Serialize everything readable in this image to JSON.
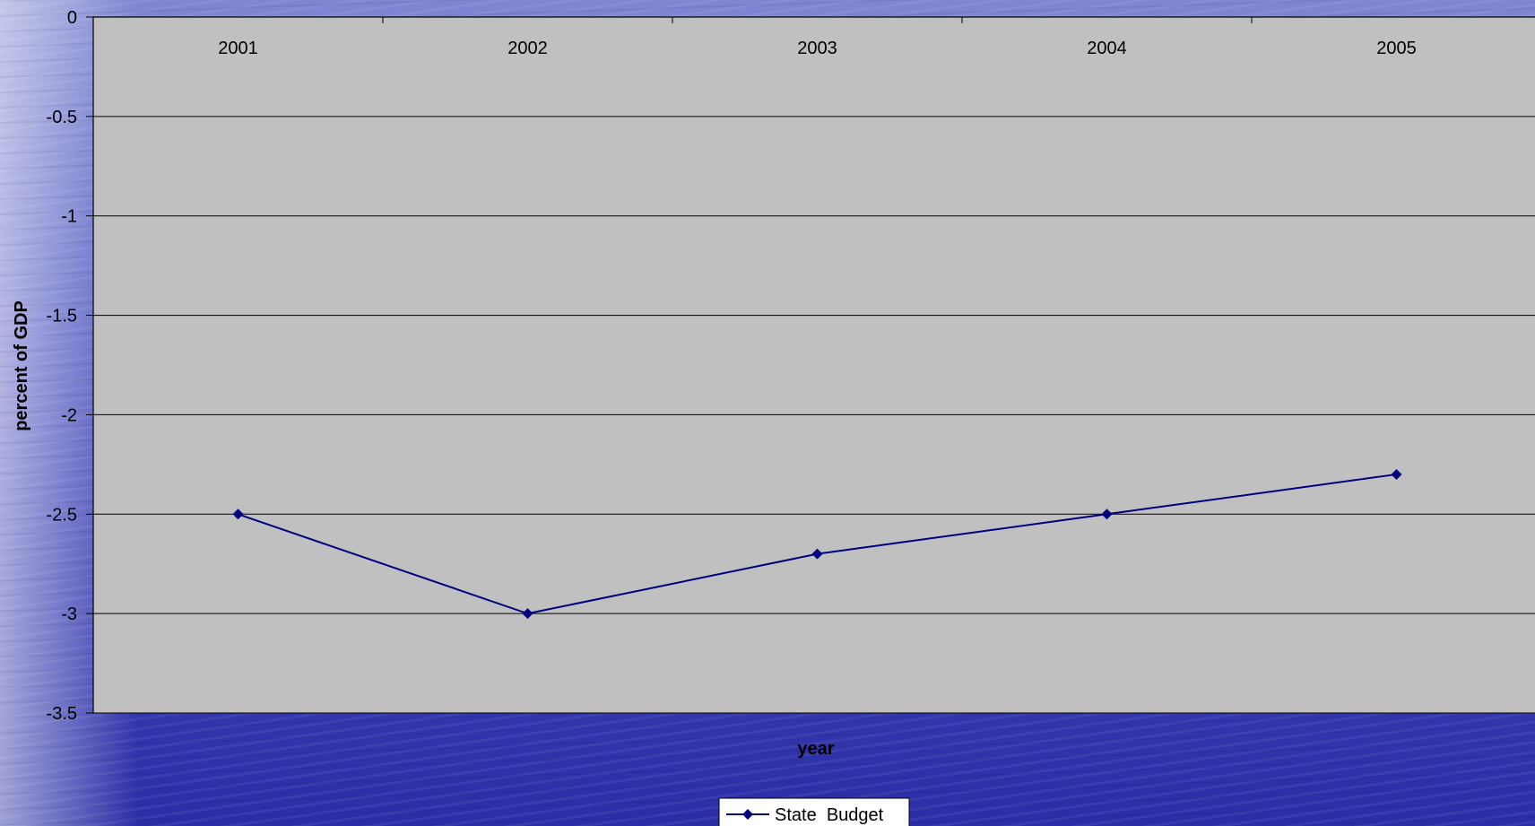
{
  "chart_data": {
    "type": "line",
    "title": "",
    "xlabel": "year",
    "ylabel": "percent of GDP",
    "categories": [
      "2001",
      "2002",
      "2003",
      "2004",
      "2005"
    ],
    "series": [
      {
        "name": "State  Budget",
        "values": [
          -2.5,
          -3.0,
          -2.7,
          -2.5,
          -2.3
        ],
        "color": "#000080"
      }
    ],
    "ylim": [
      -3.5,
      0
    ],
    "yticks": [
      0,
      -0.5,
      -1,
      -1.5,
      -2,
      -2.5,
      -3,
      -3.5
    ],
    "ytick_labels": [
      "0",
      "-0.5",
      "-1",
      "-1.5",
      "-2",
      "-2.5",
      "-3",
      "-3.5"
    ],
    "grid": true,
    "legend_position": "bottom-center",
    "plot_background": "#c0c0c0"
  }
}
